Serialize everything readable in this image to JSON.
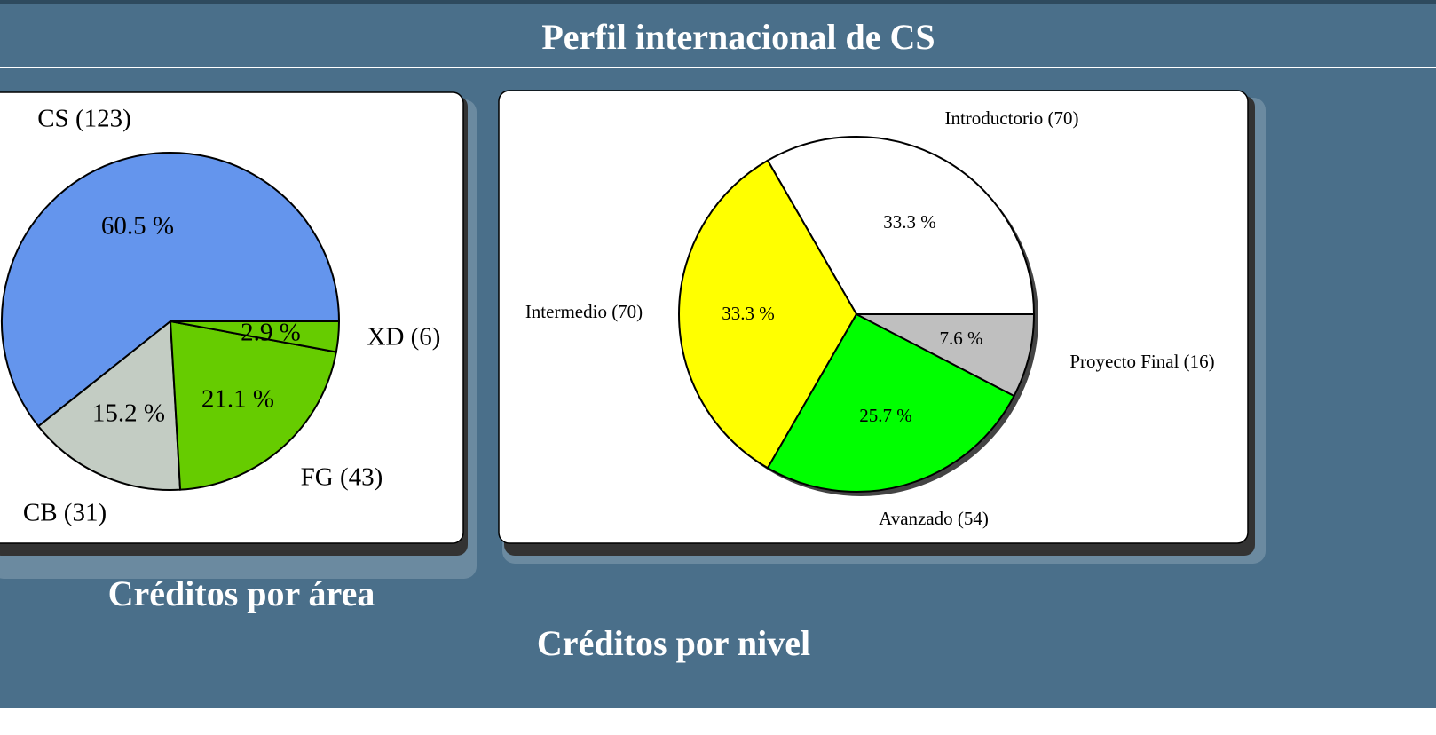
{
  "title": "Perfil internacional de CS",
  "chart_data": [
    {
      "type": "pie",
      "title": "Créditos por área",
      "categories": [
        "CS (123)",
        "CB (31)",
        "FG (43)",
        "XD (6)"
      ],
      "values": [
        60.5,
        15.2,
        21.1,
        2.9
      ],
      "value_labels": [
        "60.5 %",
        "15.2 %",
        "21.1 %",
        "2.9 %"
      ],
      "colors": [
        "#6495ed",
        "#c3ccc3",
        "#66cc00",
        "#66cc00"
      ]
    },
    {
      "type": "pie",
      "title": "Créditos por nivel",
      "categories": [
        "Introductorio (70)",
        "Intermedio (70)",
        "Avanzado (54)",
        "Proyecto Final (16)"
      ],
      "values": [
        33.3,
        33.3,
        25.7,
        7.6
      ],
      "value_labels": [
        "33.3 %",
        "33.3 %",
        "25.7 %",
        "7.6 %"
      ],
      "colors": [
        "#ffffff",
        "#ffff00",
        "#00ff00",
        "#bfbfbf"
      ]
    }
  ]
}
